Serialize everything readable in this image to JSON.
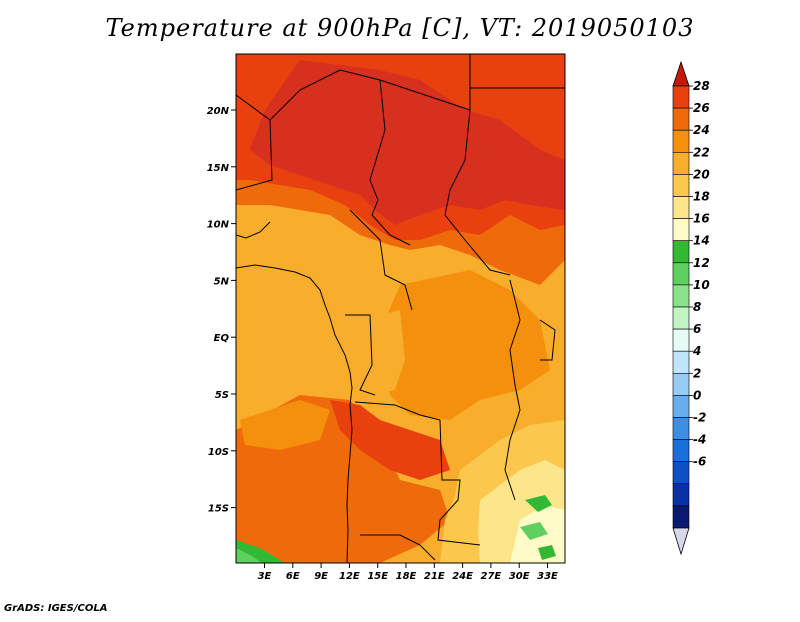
{
  "title": "Temperature at 900hPa [C], VT: 2019050103",
  "footer": "GrADS: IGES/COLA",
  "axes": {
    "x_ticks": [
      "3E",
      "6E",
      "9E",
      "12E",
      "15E",
      "18E",
      "21E",
      "24E",
      "27E",
      "30E",
      "33E"
    ],
    "y_ticks": [
      "20N",
      "15N",
      "10N",
      "5N",
      "EQ",
      "5S",
      "10S",
      "15S"
    ]
  },
  "colorbar": {
    "levels": [
      "28",
      "26",
      "24",
      "22",
      "20",
      "18",
      "16",
      "14",
      "12",
      "10",
      "8",
      "6",
      "4",
      "2",
      "0",
      "-2",
      "-4",
      "-6"
    ],
    "colors": [
      "#d7301f",
      "#e8400f",
      "#ef6a0a",
      "#f5900d",
      "#f8ad2c",
      "#fbc84d",
      "#fde58a",
      "#fffbc8",
      "#33b833",
      "#5fcf5f",
      "#8ae38a",
      "#c3f5c3",
      "#e6fbf4",
      "#bfe4fb",
      "#95cbf5",
      "#68aeee",
      "#3d8fe6",
      "#1b6fdb",
      "#0d50c6",
      "#0832a3",
      "#0a1a70"
    ],
    "top_arrow_color": "#c41a0a",
    "bottom_arrow_color": "#d8d8ec"
  }
}
